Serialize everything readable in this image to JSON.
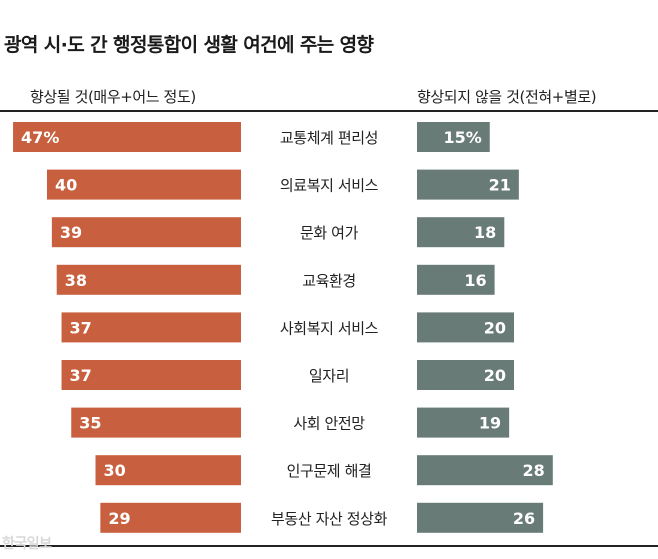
{
  "chart_data": {
    "type": "bar",
    "title": "광역 시·도 간 행정통합이 생활 여건에 주는 영향",
    "categories": [
      "교통체계 편리성",
      "의료복지 서비스",
      "문화 여가",
      "교육환경",
      "사회복지 서비스",
      "일자리",
      "사회 안전망",
      "인구문제 해결",
      "부동산 자산 정상화"
    ],
    "series": [
      {
        "name": "향상될 것(매우+어느 정도)",
        "values": [
          47,
          40,
          39,
          38,
          37,
          37,
          35,
          30,
          29
        ],
        "labels": [
          "47%",
          "40",
          "39",
          "38",
          "37",
          "37",
          "35",
          "30",
          "29"
        ],
        "color": "#c8603f"
      },
      {
        "name": "향상되지 않을 것(전혀+별로)",
        "values": [
          15,
          21,
          18,
          16,
          20,
          20,
          19,
          28,
          26
        ],
        "labels": [
          "15%",
          "21",
          "18",
          "16",
          "20",
          "20",
          "19",
          "28",
          "26"
        ],
        "color": "#687b76"
      }
    ],
    "grid": false,
    "legend": "top"
  },
  "watermark": "한국일보"
}
